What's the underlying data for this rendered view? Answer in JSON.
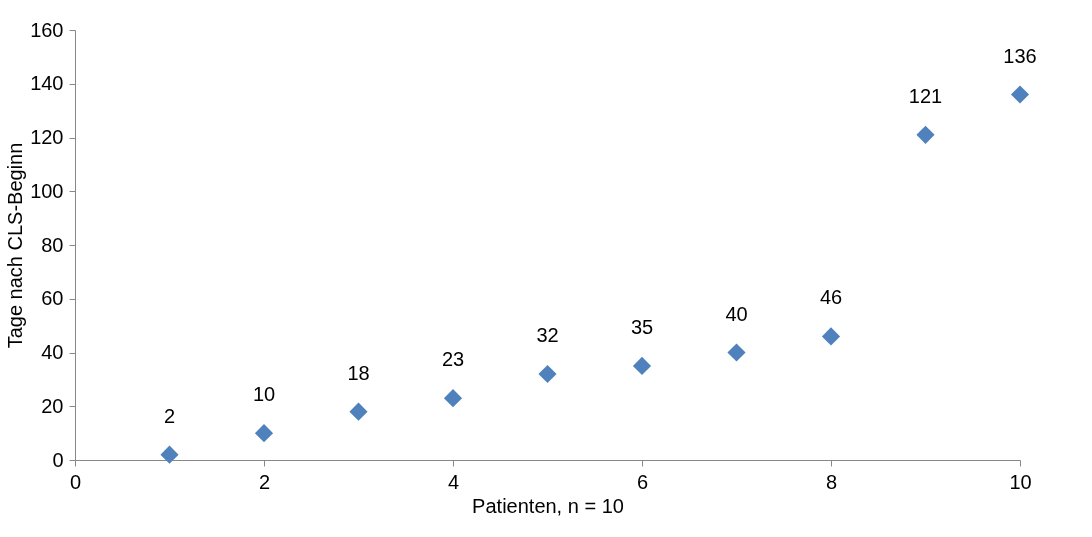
{
  "chart_data": {
    "type": "scatter",
    "xlabel": "Patienten, n = 10",
    "ylabel": "Tage nach CLS-Beginn",
    "x": [
      1,
      2,
      3,
      4,
      5,
      6,
      7,
      8,
      9,
      10
    ],
    "series": [
      {
        "color": "#4f81bd",
        "values": [
          2,
          10,
          18,
          23,
          32,
          35,
          40,
          46,
          121,
          136
        ]
      }
    ],
    "xlim": [
      0,
      10
    ],
    "xticks": [
      0,
      2,
      4,
      6,
      8,
      10
    ],
    "ylim": [
      0,
      160
    ],
    "yticks": [
      0,
      20,
      40,
      60,
      80,
      100,
      120,
      140,
      160
    ],
    "marker": "diamond",
    "data_labels": true,
    "grid": false
  }
}
